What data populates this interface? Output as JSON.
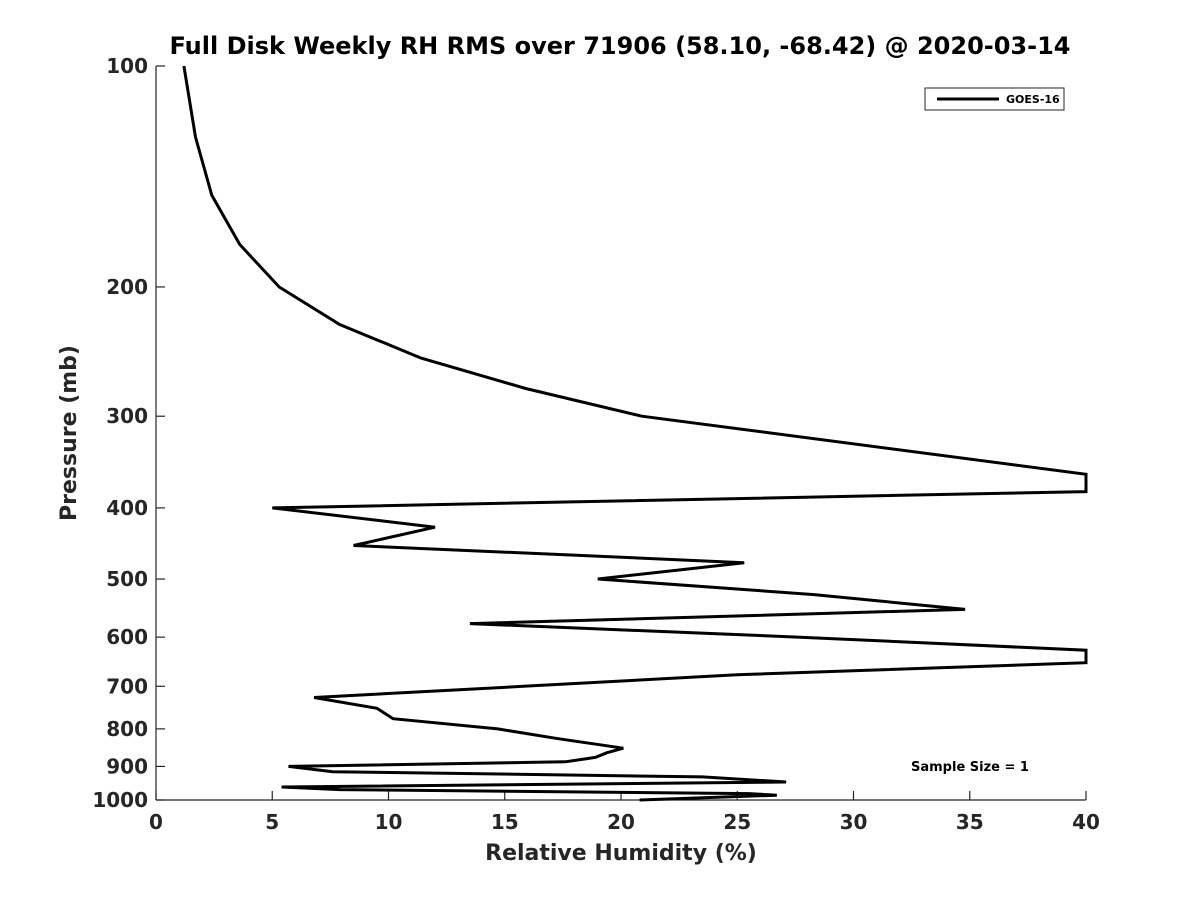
{
  "chart_data": {
    "type": "line",
    "title": "Full Disk Weekly RH RMS over 71906 (58.10, -68.42) @ 2020-03-14",
    "xlabel": "Relative Humidity (%)",
    "ylabel": "Pressure (mb)",
    "xlim": [
      0,
      40
    ],
    "ylim": [
      100,
      1000
    ],
    "yscale": "log",
    "y_reversed": true,
    "xticks": [
      0,
      5,
      10,
      15,
      20,
      25,
      30,
      35,
      40
    ],
    "yticks": [
      100,
      200,
      300,
      400,
      500,
      600,
      700,
      800,
      900,
      1000
    ],
    "grid": false,
    "legend_position": "top-right",
    "annotation": "Sample Size = 1",
    "series": [
      {
        "name": "GOES-16",
        "color": "#000000",
        "points": [
          [
            1.2,
            100
          ],
          [
            1.7,
            125
          ],
          [
            2.4,
            150
          ],
          [
            3.6,
            175
          ],
          [
            5.3,
            200
          ],
          [
            7.9,
            225
          ],
          [
            11.4,
            250
          ],
          [
            15.9,
            275
          ],
          [
            20.9,
            300
          ],
          [
            40.0,
            360
          ],
          [
            40.0,
            380
          ],
          [
            5.0,
            400
          ],
          [
            12.0,
            425
          ],
          [
            8.5,
            450
          ],
          [
            25.3,
            475
          ],
          [
            19.0,
            500
          ],
          [
            28.3,
            525
          ],
          [
            34.8,
            550
          ],
          [
            13.5,
            575
          ],
          [
            27.7,
            600
          ],
          [
            40.0,
            625
          ],
          [
            40.0,
            650
          ],
          [
            25.0,
            675
          ],
          [
            15.8,
            700
          ],
          [
            6.8,
            725
          ],
          [
            9.5,
            750
          ],
          [
            10.2,
            775
          ],
          [
            14.7,
            800
          ],
          [
            17.3,
            825
          ],
          [
            20.1,
            850
          ],
          [
            19.4,
            862
          ],
          [
            18.9,
            875
          ],
          [
            17.6,
            887
          ],
          [
            5.7,
            900
          ],
          [
            7.6,
            915
          ],
          [
            23.5,
            930
          ],
          [
            27.1,
            945
          ],
          [
            5.4,
            960
          ],
          [
            7.9,
            968
          ],
          [
            25.5,
            980
          ],
          [
            26.7,
            985
          ],
          [
            20.8,
            1000
          ]
        ]
      }
    ]
  }
}
